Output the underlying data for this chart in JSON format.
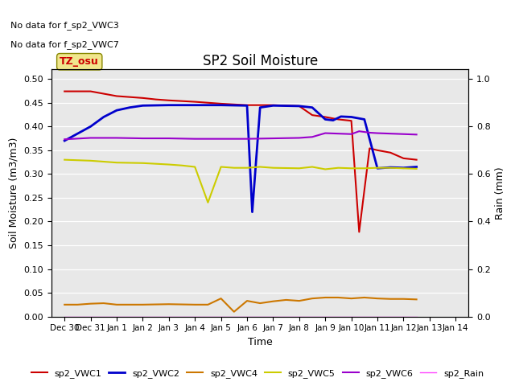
{
  "title": "SP2 Soil Moisture",
  "xlabel": "Time",
  "ylabel_left": "Soil Moisture (m3/m3)",
  "ylabel_right": "Rain (mm)",
  "no_data_text": [
    "No data for f_sp2_VWC3",
    "No data for f_sp2_VWC7"
  ],
  "tz_label": "TZ_osu",
  "bg_color": "#e8e8e8",
  "ylim_left": [
    0.0,
    0.52
  ],
  "ylim_right": [
    0.0,
    1.04
  ],
  "yticks_left": [
    0.0,
    0.05,
    0.1,
    0.15,
    0.2,
    0.25,
    0.3,
    0.35,
    0.4,
    0.45,
    0.5
  ],
  "yticks_right_vals": [
    0.0,
    0.2,
    0.4,
    0.6,
    0.8,
    1.0
  ],
  "xtick_labels": [
    "Dec 30",
    "Dec 31",
    "Jan 1",
    "Jan 2",
    "Jan 3",
    "Jan 4",
    "Jan 5",
    "Jan 6",
    "Jan 7",
    "Jan 8",
    "Jan 9",
    "Jan 10",
    "Jan 11",
    "Jan 12",
    "Jan 13",
    "Jan 14"
  ],
  "series": {
    "sp2_VWC1": {
      "color": "#cc0000",
      "lw": 1.5,
      "x": [
        0,
        1,
        2,
        3,
        3.5,
        4,
        5,
        6,
        7,
        8,
        9,
        9.5,
        10,
        10.5,
        11,
        11.3,
        11.7,
        12,
        12.5,
        13,
        13.5
      ],
      "y": [
        0.474,
        0.474,
        0.464,
        0.46,
        0.457,
        0.455,
        0.452,
        0.448,
        0.445,
        0.445,
        0.443,
        0.424,
        0.42,
        0.415,
        0.412,
        0.178,
        0.354,
        0.35,
        0.345,
        0.333,
        0.33
      ]
    },
    "sp2_VWC2": {
      "color": "#0000cc",
      "lw": 2.0,
      "x": [
        0,
        1,
        1.5,
        2,
        2.5,
        3,
        4,
        5,
        6,
        7,
        7.2,
        7.5,
        8,
        9,
        9.5,
        10,
        10.3,
        10.6,
        11,
        11.5,
        12,
        12.5,
        13,
        13.5
      ],
      "y": [
        0.37,
        0.4,
        0.42,
        0.434,
        0.44,
        0.444,
        0.445,
        0.445,
        0.445,
        0.444,
        0.22,
        0.44,
        0.444,
        0.443,
        0.44,
        0.415,
        0.413,
        0.421,
        0.42,
        0.415,
        0.312,
        0.314,
        0.313,
        0.315
      ]
    },
    "sp2_VWC4": {
      "color": "#cc7700",
      "lw": 1.5,
      "x": [
        0,
        0.5,
        1,
        1.5,
        2,
        3,
        4,
        5,
        5.5,
        6,
        6.5,
        7,
        7.5,
        8,
        8.5,
        9,
        9.5,
        10,
        10.5,
        11,
        11.5,
        12,
        12.5,
        13,
        13.5
      ],
      "y": [
        0.025,
        0.025,
        0.027,
        0.028,
        0.025,
        0.025,
        0.026,
        0.025,
        0.025,
        0.038,
        0.01,
        0.033,
        0.028,
        0.032,
        0.035,
        0.033,
        0.038,
        0.04,
        0.04,
        0.038,
        0.04,
        0.038,
        0.037,
        0.037,
        0.036
      ]
    },
    "sp2_VWC5": {
      "color": "#cccc00",
      "lw": 1.5,
      "x": [
        0,
        1,
        2,
        3,
        4,
        4.5,
        5,
        5.5,
        6,
        6.5,
        7,
        7.5,
        8,
        9,
        9.5,
        10,
        10.5,
        11,
        11.5,
        12,
        12.5,
        13,
        13.5
      ],
      "y": [
        0.33,
        0.328,
        0.324,
        0.323,
        0.32,
        0.318,
        0.315,
        0.24,
        0.315,
        0.313,
        0.313,
        0.315,
        0.313,
        0.312,
        0.315,
        0.31,
        0.313,
        0.312,
        0.312,
        0.313,
        0.313,
        0.312,
        0.311
      ]
    },
    "sp2_VWC6": {
      "color": "#9900cc",
      "lw": 1.5,
      "x": [
        0,
        1,
        2,
        3,
        4,
        5,
        6,
        7,
        8,
        9,
        9.5,
        10,
        10.5,
        11,
        11.3,
        11.7,
        12,
        12.5,
        13,
        13.5
      ],
      "y": [
        0.373,
        0.376,
        0.376,
        0.375,
        0.375,
        0.374,
        0.374,
        0.374,
        0.375,
        0.376,
        0.378,
        0.386,
        0.385,
        0.384,
        0.39,
        0.387,
        0.386,
        0.385,
        0.384,
        0.383
      ]
    },
    "sp2_Rain": {
      "color": "#ff44ff",
      "lw": 1.0,
      "x": [
        0,
        13.5
      ],
      "y": [
        0.0,
        0.0
      ]
    }
  },
  "legend_entries": [
    {
      "label": "sp2_VWC1",
      "color": "#cc0000",
      "lw": 1.5
    },
    {
      "label": "sp2_VWC2",
      "color": "#0000cc",
      "lw": 2.0
    },
    {
      "label": "sp2_VWC4",
      "color": "#cc7700",
      "lw": 1.5
    },
    {
      "label": "sp2_VWC5",
      "color": "#cccc00",
      "lw": 1.5
    },
    {
      "label": "sp2_VWC6",
      "color": "#9900cc",
      "lw": 1.5
    },
    {
      "label": "sp2_Rain",
      "color": "#ff44ff",
      "lw": 1.0
    }
  ]
}
